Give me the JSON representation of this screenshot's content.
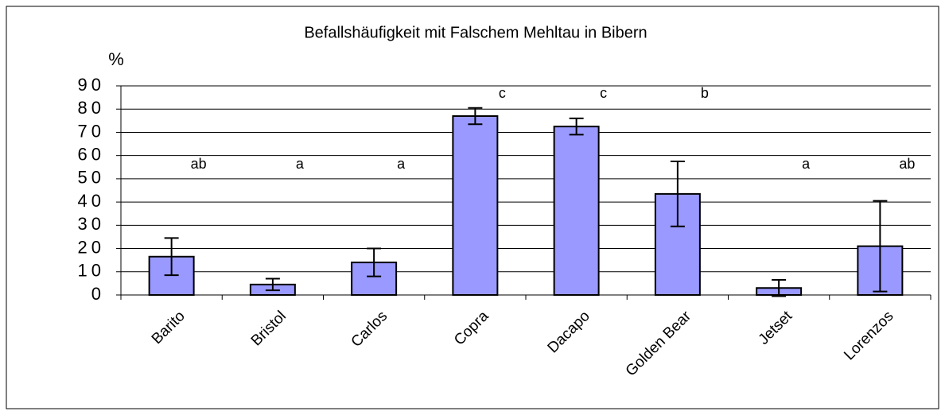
{
  "chart_data": {
    "type": "bar",
    "title": "Befallshäufigkeit mit Falschem Mehltau in Bibern",
    "y_label": "%",
    "categories": [
      "Barito",
      "Bristol",
      "Carlos",
      "Copra",
      "Dacapo",
      "Golden Bear",
      "Jetset",
      "Lorenzos"
    ],
    "values": [
      16.5,
      4.5,
      14,
      77,
      72.5,
      43.5,
      3,
      21
    ],
    "errors": [
      8,
      2.5,
      6,
      3.5,
      3.5,
      14,
      3.5,
      19.5
    ],
    "annotations": [
      "ab",
      "a",
      "a",
      "c",
      "c",
      "b",
      "a",
      "ab"
    ],
    "color": "#9999ff",
    "ylim": [
      0,
      90
    ],
    "yticks": [
      0,
      10,
      20,
      30,
      40,
      50,
      60,
      70,
      80,
      90
    ],
    "grid": true
  }
}
